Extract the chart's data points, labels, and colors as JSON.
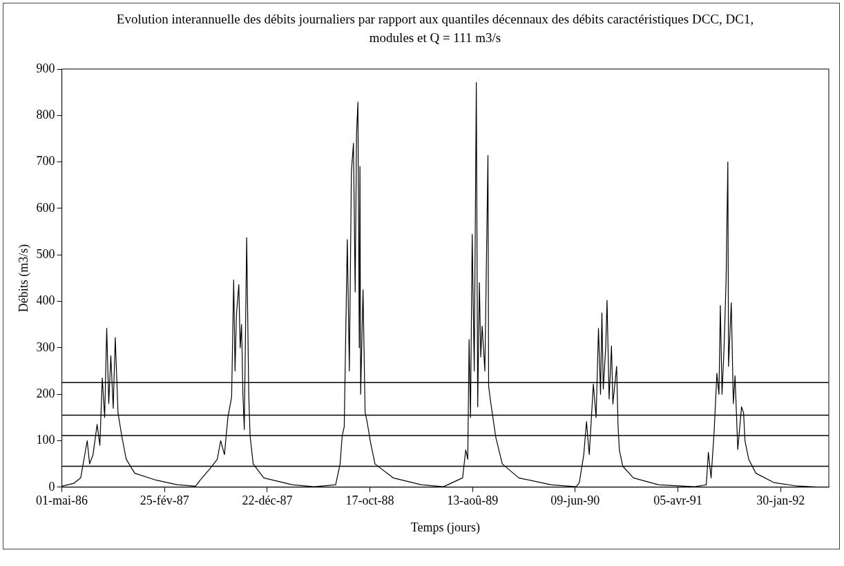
{
  "chart_data": {
    "type": "line",
    "title": "Evolution interannuelle des débits journaliers par rapport aux quantiles décennaux des débits caractéristiques DCC, DC1, modules et Q = 111 m3/s",
    "xlabel": "Temps (jours)",
    "ylabel": "Débits (m3/s)",
    "x": [
      "1986-05-01",
      "1986-06-04",
      "1986-06-25",
      "1986-07-14",
      "1986-07-21",
      "1986-07-31",
      "1986-08-12",
      "1986-08-20",
      "1986-08-27",
      "1986-09-03",
      "1986-09-09",
      "1986-09-15",
      "1986-09-21",
      "1986-09-28",
      "1986-10-04",
      "1986-10-12",
      "1986-10-23",
      "1986-11-05",
      "1986-11-30",
      "1987-02-01",
      "1987-04-05",
      "1987-05-27",
      "1987-06-09",
      "1987-07-08",
      "1987-07-29",
      "1987-08-08",
      "1987-08-19",
      "1987-08-29",
      "1987-09-09",
      "1987-09-15",
      "1987-09-19",
      "1987-09-23",
      "1987-09-30",
      "1987-10-04",
      "1987-10-08",
      "1987-10-12",
      "1987-10-16",
      "1987-10-23",
      "1987-10-29",
      "1987-11-02",
      "1987-11-11",
      "1987-12-12",
      "1988-03-05",
      "1988-05-07",
      "1988-07-09",
      "1988-07-22",
      "1988-07-28",
      "1988-08-03",
      "1988-08-12",
      "1988-08-18",
      "1988-08-24",
      "1988-08-30",
      "1988-09-04",
      "1988-09-08",
      "1988-09-12",
      "1988-09-16",
      "1988-09-18",
      "1988-09-20",
      "1988-09-27",
      "1988-10-03",
      "1988-10-09",
      "1988-10-20",
      "1988-11-01",
      "1988-12-24",
      "1989-03-17",
      "1989-05-20",
      "1989-07-15",
      "1989-07-24",
      "1989-07-30",
      "1989-08-03",
      "1989-08-07",
      "1989-08-12",
      "1989-08-18",
      "1989-08-24",
      "1989-08-28",
      "1989-09-02",
      "1989-09-06",
      "1989-09-10",
      "1989-09-18",
      "1989-09-27",
      "1989-09-29",
      "1989-10-05",
      "1989-10-20",
      "1989-11-08",
      "1989-12-26",
      "1990-03-31",
      "1990-06-12",
      "1990-06-21",
      "1990-07-04",
      "1990-07-12",
      "1990-07-20",
      "1990-08-01",
      "1990-08-09",
      "1990-08-16",
      "1990-08-22",
      "1990-08-26",
      "1990-08-30",
      "1990-09-06",
      "1990-09-10",
      "1990-09-16",
      "1990-09-23",
      "1990-09-27",
      "1990-10-08",
      "1990-10-12",
      "1990-10-16",
      "1990-10-26",
      "1990-11-26",
      "1991-02-08",
      "1991-05-24",
      "1991-06-27",
      "1991-07-03",
      "1991-07-11",
      "1991-07-20",
      "1991-07-28",
      "1991-08-03",
      "1991-08-07",
      "1991-08-12",
      "1991-08-18",
      "1991-08-24",
      "1991-08-29",
      "1991-08-31",
      "1991-09-08",
      "1991-09-14",
      "1991-09-19",
      "1991-09-27",
      "1991-10-08",
      "1991-10-14",
      "1991-10-18",
      "1991-10-29",
      "1991-11-19",
      "1992-01-10",
      "1992-03-13",
      "1992-05-25"
    ],
    "series": [
      {
        "color": "#000000",
        "values": [
          2,
          8,
          20,
          100,
          50,
          70,
          135,
          90,
          235,
          150,
          342,
          180,
          283,
          170,
          322,
          160,
          110,
          60,
          30,
          15,
          5,
          2,
          15,
          40,
          60,
          100,
          70,
          150,
          194,
          446,
          250,
          370,
          436,
          300,
          350,
          200,
          124,
          537,
          200,
          110,
          50,
          20,
          5,
          1,
          5,
          50,
          110,
          130,
          533,
          250,
          680,
          740,
          420,
          760,
          829,
          300,
          690,
          200,
          425,
          162,
          140,
          92,
          50,
          20,
          5,
          1,
          20,
          80,
          60,
          318,
          150,
          544,
          250,
          871,
          173,
          440,
          280,
          347,
          250,
          714,
          217,
          183,
          107,
          50,
          20,
          5,
          1,
          10,
          70,
          141,
          70,
          222,
          150,
          342,
          200,
          375,
          211,
          300,
          402,
          190,
          304,
          179,
          260,
          135,
          80,
          45,
          20,
          5,
          1,
          5,
          75,
          20,
          120,
          245,
          200,
          391,
          200,
          300,
          450,
          700,
          260,
          397,
          180,
          240,
          81,
          173,
          160,
          100,
          60,
          30,
          10,
          3,
          0
        ]
      }
    ],
    "xlim": [
      "1986-05-01",
      "1992-06-19"
    ],
    "xticks": [
      {
        "value": "1986-05-01",
        "label": "01-mai-86"
      },
      {
        "value": "1987-02-25",
        "label": "25-fév-87"
      },
      {
        "value": "1987-12-22",
        "label": "22-déc-87"
      },
      {
        "value": "1988-10-17",
        "label": "17-oct-88"
      },
      {
        "value": "1989-08-13",
        "label": "13-aoû-89"
      },
      {
        "value": "1990-06-09",
        "label": "09-jun-90"
      },
      {
        "value": "1991-04-05",
        "label": "05-avr-91"
      },
      {
        "value": "1992-01-30",
        "label": "30-jan-92"
      }
    ],
    "ylim": [
      0,
      900
    ],
    "yticks": [
      0,
      100,
      200,
      300,
      400,
      500,
      600,
      700,
      800,
      900
    ],
    "ref_lines": [
      {
        "axis": "y",
        "value": 225,
        "color": "#000000"
      },
      {
        "axis": "y",
        "value": 155,
        "color": "#000000"
      },
      {
        "axis": "y",
        "value": 111,
        "color": "#000000"
      },
      {
        "axis": "y",
        "value": 45,
        "color": "#000000"
      }
    ],
    "grid": false,
    "legend": false,
    "marker": "none",
    "line_style": "solid"
  }
}
